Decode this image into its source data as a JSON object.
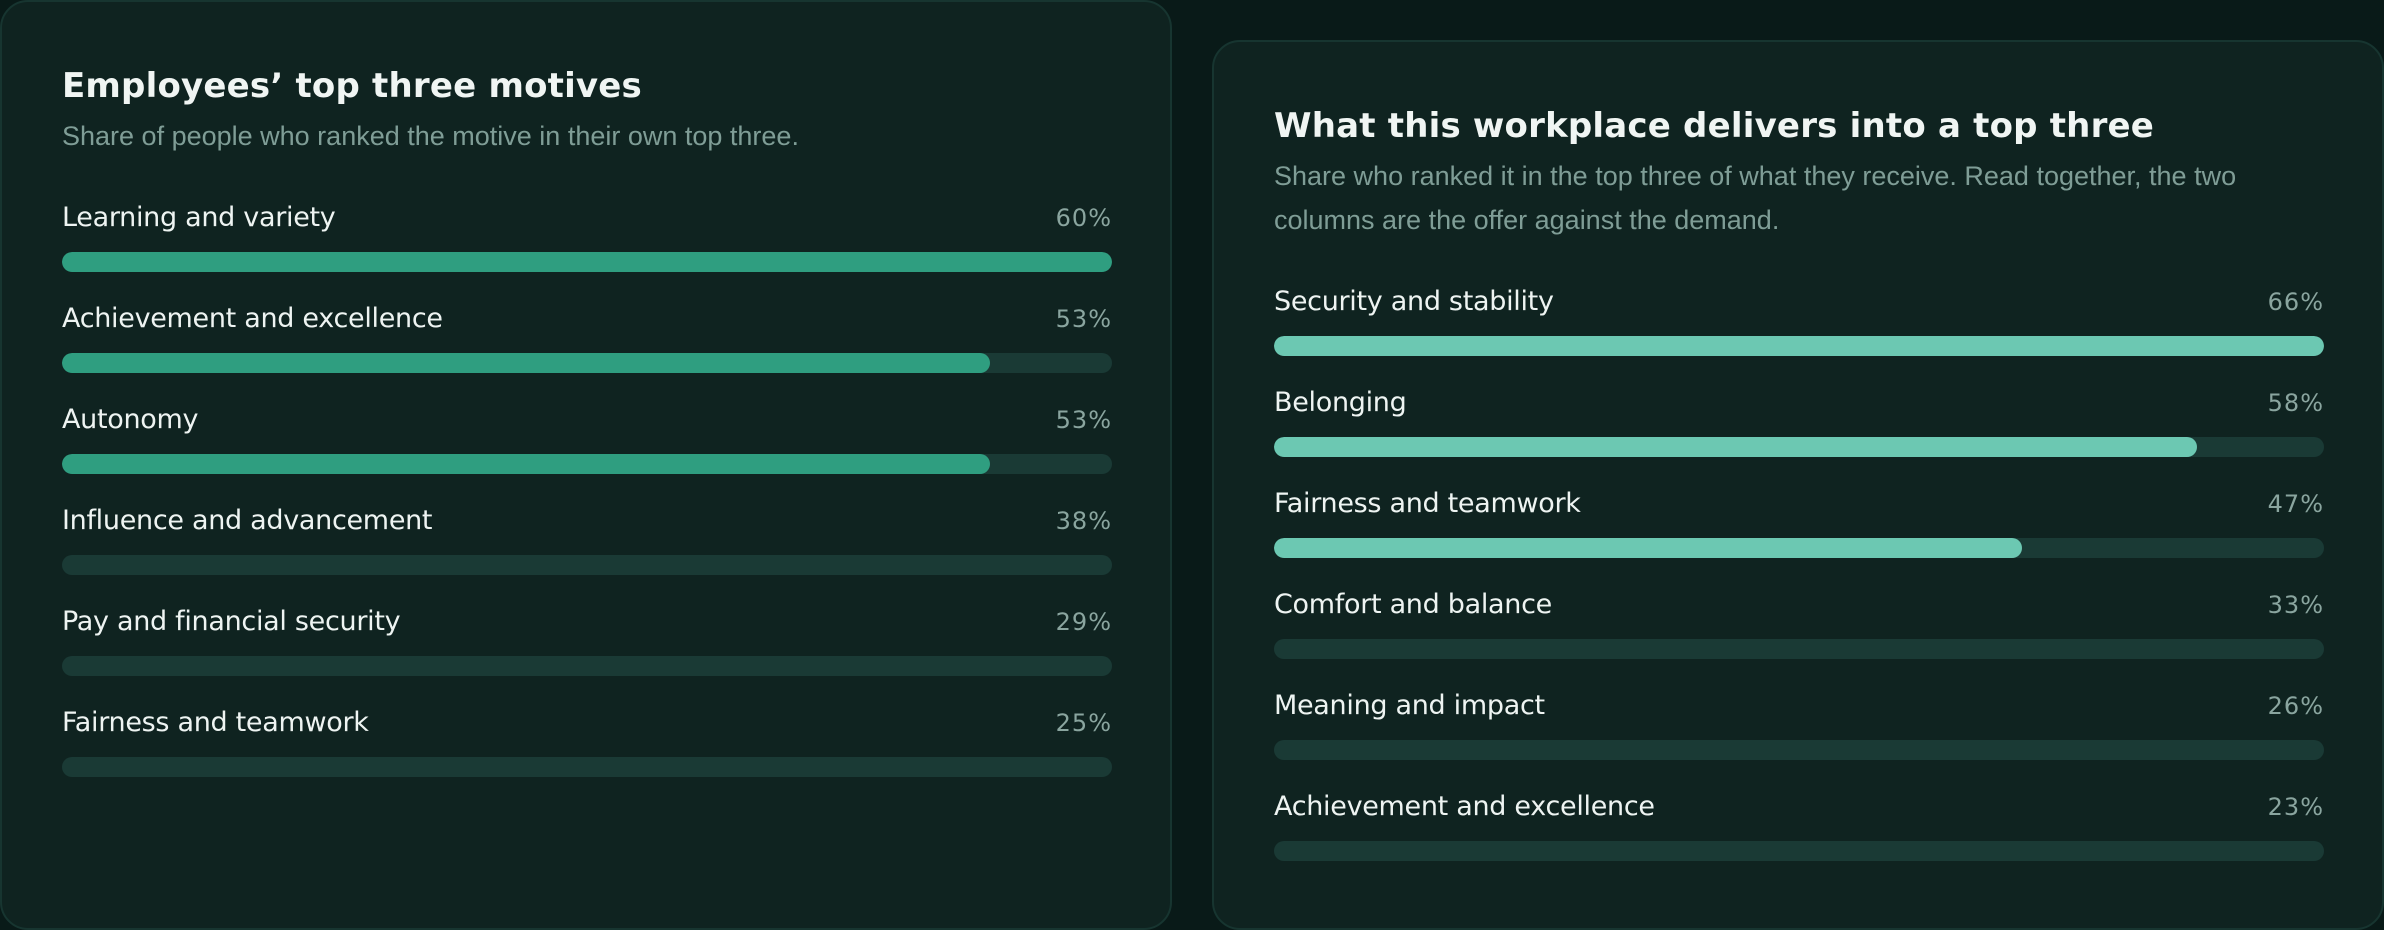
{
  "colors": {
    "left_fill": "#2f9e80",
    "right_fill": "#6cc8b2",
    "track": "#1a3a35"
  },
  "chart_data": [
    {
      "type": "bar",
      "orientation": "horizontal",
      "title": "Employees’ top three motives",
      "subtitle": "Share of people who ranked the motive in their own top three.",
      "unit": "%",
      "ylim": [
        0,
        60
      ],
      "categories": [
        "Learning and variety",
        "Achievement and excellence",
        "Autonomy",
        "Influence and advancement",
        "Pay and financial security",
        "Fairness and teamwork"
      ],
      "values": [
        60,
        53,
        53,
        38,
        29,
        25
      ],
      "value_labels": [
        "60%",
        "53%",
        "53%",
        "38%",
        "29%",
        "25%"
      ],
      "highlighted": [
        true,
        true,
        true,
        false,
        false,
        false
      ]
    },
    {
      "type": "bar",
      "orientation": "horizontal",
      "title": "What this workplace delivers into a top three",
      "subtitle": "Share who ranked it in the top three of what they receive. Read together, the two columns are the offer against the demand.",
      "unit": "%",
      "ylim": [
        0,
        66
      ],
      "categories": [
        "Security and stability",
        "Belonging",
        "Fairness and teamwork",
        "Comfort and balance",
        "Meaning and impact",
        "Achievement and excellence"
      ],
      "values": [
        66,
        58,
        47,
        33,
        26,
        23
      ],
      "value_labels": [
        "66%",
        "58%",
        "47%",
        "33%",
        "26%",
        "23%"
      ],
      "highlighted": [
        true,
        true,
        true,
        false,
        false,
        false
      ]
    }
  ]
}
